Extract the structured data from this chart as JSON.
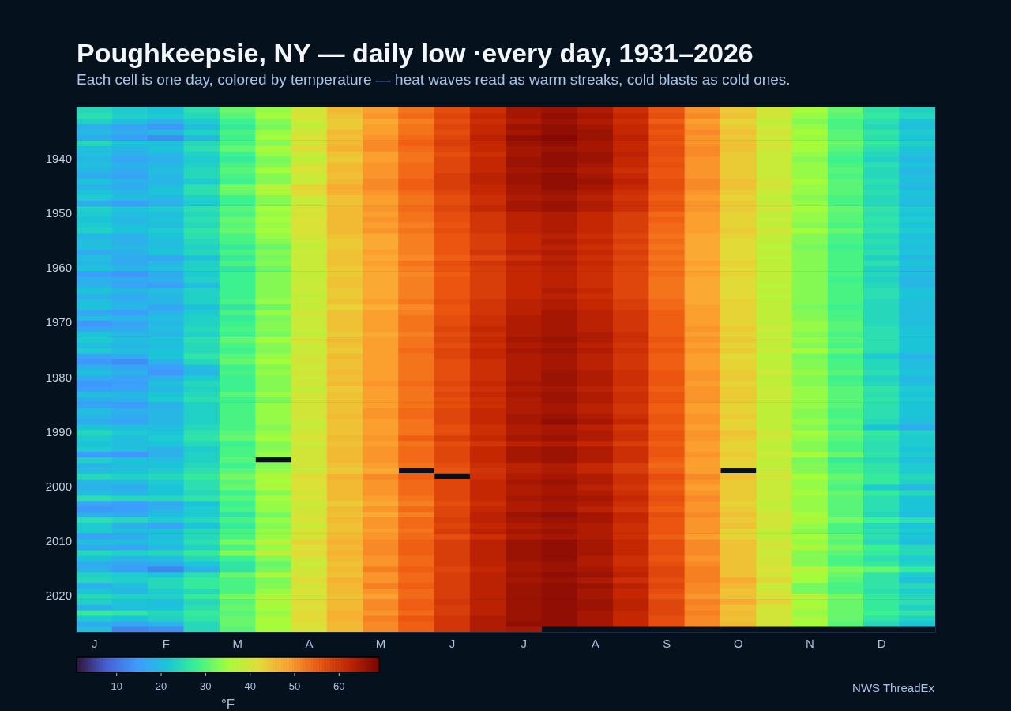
{
  "chart_data": {
    "type": "heatmap",
    "title": "Poughkeepsie, NY — daily low ·every day, 1931–2026",
    "subtitle": "Each cell is one day, colored by temperature — heat waves read as warm streaks, cold blasts as cold ones.",
    "categories": [
      "J",
      null,
      "F",
      null,
      "M",
      null,
      "A",
      null,
      "M",
      null,
      "J",
      null,
      "J",
      null,
      "A",
      null,
      "S",
      null,
      "O",
      null,
      "N",
      null,
      "D",
      null
    ],
    "y_categories": [
      null,
      null,
      null,
      null,
      null,
      null,
      null,
      null,
      null,
      "1940",
      null,
      null,
      null,
      null,
      null,
      null,
      null,
      null,
      null,
      "1950",
      null,
      null,
      null,
      null,
      null,
      null,
      null,
      null,
      null,
      "1960",
      null,
      null,
      null,
      null,
      null,
      null,
      null,
      null,
      null,
      "1970",
      null,
      null,
      null,
      null,
      null,
      null,
      null,
      null,
      null,
      "1980",
      null,
      null,
      null,
      null,
      null,
      null,
      null,
      null,
      null,
      "1990",
      null,
      null,
      null,
      null,
      null,
      null,
      null,
      null,
      null,
      "2000",
      null,
      null,
      null,
      null,
      null,
      null,
      null,
      null,
      null,
      "2010",
      null,
      null,
      null,
      null,
      null,
      null,
      null,
      null,
      null,
      "2020",
      null,
      null,
      null,
      null,
      null,
      null
    ],
    "cells": [
      [
        24,
        22,
        21,
        25,
        31,
        34,
        40,
        46,
        49,
        53,
        57,
        61,
        65,
        66,
        64,
        61,
        56,
        50,
        44,
        40,
        35,
        31,
        26,
        23
      ],
      [
        25,
        23,
        22,
        24,
        30,
        35,
        41,
        45,
        50,
        54,
        58,
        62,
        65,
        67,
        65,
        62,
        57,
        51,
        45,
        40,
        34,
        30,
        27,
        24
      ],
      [
        23,
        20,
        18,
        22,
        28,
        33,
        39,
        44,
        48,
        52,
        57,
        61,
        64,
        66,
        64,
        61,
        55,
        49,
        43,
        38,
        33,
        29,
        25,
        21
      ],
      [
        18,
        16,
        14,
        20,
        27,
        32,
        38,
        44,
        49,
        53,
        58,
        62,
        66,
        67,
        65,
        62,
        57,
        50,
        44,
        39,
        34,
        29,
        24,
        20
      ],
      [
        19,
        17,
        19,
        23,
        29,
        34,
        40,
        46,
        49,
        53,
        57,
        62,
        65,
        67,
        66,
        62,
        56,
        51,
        45,
        40,
        35,
        30,
        26,
        22
      ],
      [
        17,
        15,
        13,
        19,
        28,
        35,
        41,
        45,
        50,
        54,
        58,
        63,
        67,
        68,
        66,
        63,
        57,
        50,
        44,
        39,
        34,
        30,
        25,
        21
      ],
      [
        24,
        21,
        20,
        24,
        29,
        33,
        40,
        46,
        51,
        55,
        59,
        62,
        66,
        67,
        65,
        62,
        56,
        50,
        45,
        40,
        35,
        31,
        27,
        23
      ],
      [
        20,
        19,
        21,
        25,
        31,
        36,
        42,
        47,
        51,
        54,
        58,
        62,
        65,
        66,
        65,
        62,
        57,
        51,
        45,
        40,
        35,
        30,
        25,
        21
      ],
      [
        20,
        18,
        19,
        23,
        28,
        34,
        39,
        45,
        49,
        53,
        57,
        61,
        65,
        67,
        66,
        63,
        57,
        51,
        44,
        39,
        34,
        29,
        24,
        20
      ],
      [
        19,
        16,
        18,
        22,
        27,
        32,
        38,
        44,
        49,
        53,
        58,
        62,
        66,
        67,
        66,
        62,
        56,
        50,
        44,
        39,
        33,
        28,
        23,
        19
      ],
      [
        20,
        18,
        19,
        23,
        29,
        33,
        40,
        46,
        50,
        54,
        58,
        62,
        66,
        67,
        65,
        62,
        57,
        50,
        44,
        39,
        34,
        29,
        25,
        21
      ],
      [
        19,
        17,
        20,
        24,
        30,
        35,
        41,
        46,
        50,
        54,
        58,
        62,
        65,
        66,
        64,
        61,
        56,
        50,
        44,
        39,
        34,
        30,
        24,
        19
      ],
      [
        17,
        16,
        19,
        24,
        29,
        33,
        39,
        45,
        50,
        54,
        59,
        63,
        66,
        67,
        65,
        62,
        56,
        50,
        44,
        39,
        34,
        29,
        24,
        20
      ],
      [
        21,
        18,
        19,
        22,
        28,
        33,
        39,
        46,
        51,
        55,
        59,
        63,
        66,
        67,
        66,
        63,
        57,
        51,
        45,
        40,
        35,
        30,
        25,
        20
      ],
      [
        18,
        17,
        20,
        25,
        32,
        37,
        43,
        48,
        51,
        55,
        59,
        62,
        65,
        67,
        65,
        62,
        57,
        51,
        45,
        40,
        34,
        30,
        24,
        19
      ],
      [
        21,
        19,
        21,
        25,
        31,
        36,
        42,
        47,
        50,
        54,
        58,
        62,
        65,
        66,
        64,
        61,
        56,
        50,
        44,
        39,
        34,
        30,
        25,
        21
      ],
      [
        22,
        20,
        19,
        23,
        28,
        33,
        39,
        45,
        49,
        53,
        57,
        61,
        64,
        65,
        63,
        60,
        55,
        49,
        43,
        38,
        33,
        29,
        24,
        20
      ],
      [
        17,
        15,
        18,
        22,
        28,
        33,
        39,
        45,
        49,
        53,
        57,
        61,
        65,
        66,
        64,
        61,
        56,
        50,
        44,
        39,
        34,
        29,
        24,
        20
      ],
      [
        23,
        21,
        22,
        25,
        30,
        35,
        41,
        46,
        50,
        54,
        58,
        62,
        65,
        66,
        64,
        61,
        56,
        50,
        44,
        40,
        35,
        31,
        26,
        22
      ],
      [
        22,
        20,
        20,
        24,
        29,
        34,
        40,
        46,
        49,
        53,
        57,
        60,
        63,
        64,
        62,
        59,
        54,
        49,
        43,
        38,
        34,
        30,
        25,
        21
      ],
      [
        21,
        19,
        21,
        25,
        31,
        35,
        41,
        46,
        50,
        53,
        57,
        60,
        63,
        64,
        62,
        59,
        55,
        49,
        43,
        39,
        34,
        30,
        26,
        22
      ],
      [
        22,
        20,
        20,
        24,
        30,
        34,
        41,
        46,
        49,
        52,
        56,
        60,
        63,
        64,
        62,
        59,
        54,
        49,
        43,
        38,
        33,
        29,
        25,
        21
      ],
      [
        23,
        21,
        22,
        26,
        31,
        35,
        41,
        46,
        50,
        53,
        57,
        60,
        63,
        64,
        62,
        59,
        54,
        49,
        44,
        40,
        35,
        31,
        26,
        22
      ],
      [
        19,
        18,
        21,
        25,
        29,
        34,
        40,
        45,
        48,
        52,
        56,
        59,
        62,
        63,
        61,
        58,
        53,
        48,
        43,
        38,
        33,
        29,
        24,
        20
      ],
      [
        20,
        18,
        20,
        24,
        29,
        33,
        39,
        44,
        48,
        52,
        56,
        59,
        62,
        64,
        62,
        59,
        54,
        48,
        42,
        38,
        33,
        29,
        25,
        21
      ],
      [
        20,
        19,
        20,
        23,
        27,
        31,
        38,
        44,
        48,
        52,
        56,
        59,
        62,
        63,
        61,
        58,
        53,
        48,
        42,
        37,
        32,
        28,
        24,
        20
      ],
      [
        17,
        18,
        21,
        24,
        29,
        33,
        39,
        45,
        49,
        52,
        56,
        60,
        63,
        64,
        62,
        59,
        54,
        48,
        42,
        38,
        33,
        29,
        25,
        21
      ],
      [
        20,
        17,
        16,
        20,
        27,
        32,
        39,
        45,
        48,
        51,
        55,
        58,
        61,
        63,
        61,
        58,
        53,
        48,
        42,
        37,
        33,
        29,
        23,
        19
      ],
      [
        19,
        17,
        19,
        23,
        29,
        33,
        39,
        45,
        49,
        53,
        57,
        60,
        63,
        64,
        62,
        59,
        54,
        49,
        43,
        38,
        33,
        29,
        25,
        21
      ],
      [
        21,
        19,
        20,
        23,
        26,
        31,
        39,
        44,
        48,
        52,
        56,
        59,
        62,
        63,
        61,
        58,
        53,
        48,
        42,
        38,
        33,
        29,
        23,
        19
      ],
      [
        15,
        14,
        17,
        22,
        28,
        33,
        38,
        44,
        48,
        51,
        55,
        59,
        62,
        63,
        61,
        58,
        54,
        49,
        43,
        38,
        33,
        29,
        24,
        20
      ],
      [
        18,
        17,
        18,
        23,
        28,
        33,
        39,
        45,
        48,
        52,
        56,
        59,
        62,
        63,
        61,
        58,
        53,
        48,
        42,
        38,
        33,
        28,
        23,
        19
      ],
      [
        18,
        16,
        15,
        20,
        28,
        33,
        39,
        45,
        48,
        52,
        56,
        59,
        62,
        63,
        61,
        58,
        53,
        48,
        42,
        37,
        33,
        29,
        24,
        19
      ],
      [
        21,
        19,
        20,
        23,
        28,
        33,
        39,
        44,
        48,
        52,
        56,
        59,
        62,
        64,
        62,
        58,
        53,
        48,
        42,
        38,
        33,
        29,
        25,
        21
      ],
      [
        18,
        17,
        19,
        23,
        28,
        33,
        38,
        44,
        48,
        52,
        56,
        59,
        62,
        63,
        61,
        58,
        53,
        48,
        42,
        37,
        33,
        29,
        25,
        21
      ],
      [
        20,
        18,
        19,
        23,
        29,
        34,
        39,
        45,
        49,
        53,
        57,
        60,
        63,
        64,
        62,
        59,
        54,
        48,
        43,
        38,
        33,
        29,
        24,
        20
      ],
      [
        21,
        19,
        16,
        20,
        26,
        31,
        38,
        43,
        47,
        51,
        56,
        60,
        63,
        64,
        62,
        59,
        54,
        49,
        43,
        38,
        32,
        28,
        24,
        20
      ],
      [
        16,
        15,
        18,
        22,
        29,
        34,
        40,
        45,
        49,
        52,
        56,
        60,
        63,
        65,
        63,
        60,
        55,
        49,
        43,
        38,
        33,
        29,
        24,
        20
      ],
      [
        20,
        19,
        20,
        23,
        27,
        32,
        39,
        45,
        49,
        53,
        57,
        61,
        64,
        65,
        63,
        60,
        55,
        49,
        43,
        38,
        33,
        29,
        24,
        20
      ],
      [
        14,
        16,
        19,
        23,
        28,
        33,
        39,
        45,
        49,
        53,
        57,
        61,
        64,
        65,
        63,
        60,
        55,
        49,
        43,
        38,
        34,
        30,
        24,
        20
      ],
      [
        16,
        17,
        20,
        24,
        29,
        33,
        39,
        45,
        49,
        53,
        58,
        62,
        64,
        65,
        63,
        60,
        55,
        50,
        44,
        39,
        34,
        30,
        25,
        21
      ],
      [
        21,
        19,
        19,
        23,
        28,
        32,
        38,
        44,
        48,
        52,
        57,
        61,
        64,
        65,
        64,
        61,
        55,
        49,
        43,
        38,
        33,
        29,
        25,
        21
      ],
      [
        22,
        20,
        21,
        25,
        31,
        35,
        41,
        46,
        49,
        53,
        58,
        62,
        65,
        66,
        64,
        61,
        56,
        50,
        44,
        39,
        34,
        30,
        25,
        21
      ],
      [
        20,
        19,
        20,
        24,
        29,
        33,
        39,
        45,
        49,
        53,
        57,
        61,
        64,
        65,
        63,
        60,
        55,
        49,
        43,
        38,
        33,
        29,
        25,
        21
      ],
      [
        22,
        20,
        21,
        24,
        28,
        33,
        39,
        44,
        49,
        54,
        58,
        62,
        65,
        66,
        64,
        61,
        56,
        50,
        44,
        39,
        35,
        31,
        25,
        21
      ],
      [
        16,
        17,
        21,
        26,
        30,
        34,
        40,
        46,
        49,
        53,
        58,
        62,
        64,
        65,
        63,
        60,
        55,
        49,
        42,
        37,
        32,
        28,
        22,
        18
      ],
      [
        14,
        13,
        18,
        24,
        31,
        35,
        40,
        45,
        49,
        53,
        57,
        61,
        64,
        65,
        63,
        60,
        55,
        49,
        43,
        38,
        33,
        29,
        24,
        20
      ],
      [
        18,
        16,
        15,
        20,
        28,
        33,
        39,
        45,
        49,
        53,
        57,
        61,
        64,
        65,
        63,
        60,
        55,
        49,
        43,
        38,
        33,
        29,
        24,
        20
      ],
      [
        20,
        18,
        14,
        19,
        29,
        34,
        40,
        46,
        49,
        53,
        57,
        61,
        64,
        66,
        64,
        61,
        56,
        50,
        44,
        39,
        34,
        30,
        25,
        21
      ],
      [
        17,
        16,
        18,
        22,
        28,
        33,
        39,
        45,
        49,
        53,
        57,
        61,
        64,
        66,
        64,
        61,
        56,
        50,
        44,
        38,
        33,
        28,
        23,
        19
      ],
      [
        14,
        15,
        20,
        24,
        28,
        33,
        40,
        46,
        50,
        54,
        58,
        62,
        65,
        66,
        64,
        61,
        56,
        49,
        43,
        38,
        33,
        29,
        24,
        20
      ],
      [
        15,
        16,
        19,
        23,
        28,
        33,
        38,
        44,
        49,
        53,
        57,
        61,
        64,
        65,
        63,
        60,
        55,
        50,
        44,
        39,
        34,
        30,
        26,
        22
      ],
      [
        20,
        19,
        21,
        24,
        30,
        34,
        40,
        45,
        49,
        53,
        58,
        62,
        65,
        66,
        64,
        61,
        56,
        50,
        44,
        39,
        34,
        30,
        25,
        21
      ],
      [
        17,
        18,
        22,
        25,
        28,
        32,
        40,
        45,
        49,
        53,
        57,
        61,
        64,
        66,
        64,
        61,
        56,
        50,
        44,
        39,
        34,
        30,
        26,
        22
      ],
      [
        16,
        15,
        18,
        23,
        29,
        34,
        40,
        45,
        49,
        53,
        57,
        61,
        64,
        65,
        63,
        60,
        55,
        49,
        43,
        38,
        34,
        30,
        25,
        21
      ],
      [
        20,
        18,
        19,
        23,
        29,
        34,
        40,
        45,
        50,
        54,
        58,
        62,
        64,
        65,
        63,
        60,
        55,
        49,
        43,
        38,
        33,
        29,
        25,
        21
      ],
      [
        19,
        17,
        19,
        23,
        29,
        34,
        40,
        46,
        50,
        54,
        58,
        62,
        65,
        66,
        64,
        61,
        56,
        50,
        44,
        38,
        33,
        29,
        25,
        21
      ],
      [
        17,
        16,
        19,
        23,
        29,
        34,
        39,
        45,
        49,
        53,
        58,
        62,
        65,
        67,
        65,
        62,
        56,
        50,
        43,
        38,
        34,
        30,
        24,
        20
      ],
      [
        21,
        20,
        20,
        24,
        29,
        33,
        39,
        45,
        49,
        53,
        57,
        61,
        64,
        65,
        63,
        60,
        55,
        49,
        43,
        38,
        33,
        29,
        21,
        17
      ],
      [
        24,
        22,
        21,
        25,
        30,
        34,
        40,
        45,
        49,
        53,
        57,
        61,
        64,
        65,
        64,
        61,
        56,
        50,
        45,
        40,
        35,
        31,
        27,
        23
      ],
      [
        22,
        20,
        22,
        26,
        31,
        35,
        41,
        46,
        50,
        55,
        59,
        62,
        65,
        66,
        64,
        61,
        56,
        50,
        44,
        39,
        34,
        30,
        26,
        22
      ],
      [
        21,
        20,
        21,
        24,
        28,
        33,
        39,
        45,
        49,
        53,
        57,
        60,
        63,
        64,
        62,
        59,
        55,
        49,
        43,
        38,
        33,
        29,
        25,
        22
      ],
      [
        22,
        20,
        18,
        22,
        29,
        33,
        40,
        46,
        50,
        54,
        58,
        62,
        65,
        66,
        64,
        61,
        56,
        49,
        43,
        38,
        33,
        29,
        25,
        21
      ],
      [
        15,
        14,
        18,
        23,
        29,
        34,
        40,
        46,
        50,
        54,
        58,
        62,
        65,
        66,
        64,
        61,
        56,
        50,
        44,
        39,
        35,
        31,
        26,
        22
      ],
      [
        23,
        21,
        20,
        23,
        30,
        null,
        40,
        46,
        50,
        54,
        58,
        62,
        65,
        66,
        64,
        61,
        55,
        49,
        43,
        38,
        32,
        27,
        24,
        20
      ],
      [
        19,
        20,
        21,
        24,
        28,
        33,
        40,
        45,
        49,
        53,
        57,
        61,
        63,
        64,
        62,
        59,
        54,
        49,
        43,
        38,
        33,
        29,
        26,
        22
      ],
      [
        20,
        21,
        22,
        25,
        30,
        34,
        39,
        44,
        48,
        null,
        56,
        60,
        63,
        64,
        62,
        59,
        55,
        49,
        null,
        39,
        33,
        29,
        26,
        22
      ],
      [
        24,
        23,
        24,
        27,
        32,
        36,
        42,
        47,
        51,
        55,
        null,
        61,
        64,
        65,
        64,
        61,
        57,
        51,
        45,
        40,
        35,
        31,
        27,
        24
      ],
      [
        19,
        20,
        22,
        25,
        30,
        35,
        41,
        46,
        50,
        54,
        58,
        62,
        65,
        66,
        64,
        61,
        56,
        50,
        44,
        39,
        34,
        30,
        27,
        23
      ],
      [
        18,
        17,
        21,
        25,
        31,
        36,
        41,
        46,
        50,
        54,
        58,
        62,
        64,
        65,
        63,
        60,
        55,
        49,
        44,
        39,
        34,
        29,
        22,
        19
      ],
      [
        20,
        19,
        21,
        24,
        28,
        33,
        40,
        46,
        50,
        54,
        58,
        62,
        64,
        65,
        64,
        61,
        56,
        50,
        44,
        39,
        35,
        31,
        27,
        24
      ],
      [
        25,
        24,
        24,
        26,
        30,
        35,
        41,
        46,
        49,
        53,
        58,
        62,
        65,
        66,
        65,
        62,
        57,
        51,
        44,
        39,
        34,
        30,
        25,
        21
      ],
      [
        16,
        15,
        17,
        21,
        28,
        34,
        39,
        44,
        48,
        52,
        57,
        61,
        64,
        65,
        64,
        61,
        56,
        50,
        43,
        38,
        34,
        30,
        25,
        21
      ],
      [
        14,
        15,
        18,
        22,
        29,
        34,
        40,
        46,
        50,
        54,
        58,
        62,
        64,
        65,
        63,
        60,
        55,
        50,
        44,
        39,
        34,
        30,
        25,
        21
      ],
      [
        18,
        17,
        20,
        22,
        26,
        32,
        40,
        45,
        48,
        52,
        58,
        63,
        66,
        67,
        65,
        62,
        57,
        51,
        45,
        40,
        35,
        30,
        24,
        20
      ],
      [
        25,
        24,
        22,
        24,
        29,
        34,
        41,
        46,
        50,
        54,
        59,
        63,
        65,
        66,
        65,
        62,
        56,
        50,
        44,
        40,
        36,
        32,
        28,
        25
      ],
      [
        22,
        18,
        16,
        21,
        27,
        33,
        39,
        45,
        50,
        54,
        58,
        62,
        64,
        65,
        64,
        61,
        56,
        50,
        45,
        40,
        34,
        29,
        24,
        21
      ],
      [
        22,
        20,
        21,
        24,
        29,
        34,
        41,
        45,
        49,
        53,
        59,
        63,
        65,
        66,
        64,
        61,
        56,
        50,
        43,
        38,
        33,
        29,
        25,
        22
      ],
      [
        16,
        17,
        20,
        24,
        29,
        34,
        40,
        46,
        50,
        54,
        57,
        61,
        64,
        65,
        64,
        61,
        55,
        49,
        43,
        38,
        35,
        31,
        25,
        21
      ],
      [
        20,
        20,
        21,
        25,
        32,
        37,
        43,
        47,
        51,
        55,
        59,
        63,
        66,
        67,
        65,
        62,
        57,
        51,
        45,
        40,
        34,
        30,
        24,
        20
      ],
      [
        17,
        16,
        19,
        23,
        29,
        34,
        41,
        46,
        51,
        55,
        59,
        63,
        66,
        67,
        65,
        62,
        57,
        51,
        45,
        40,
        36,
        32,
        28,
        24
      ],
      [
        24,
        23,
        24,
        27,
        33,
        38,
        42,
        47,
        51,
        55,
        59,
        63,
        66,
        67,
        65,
        62,
        57,
        51,
        45,
        39,
        33,
        30,
        27,
        24
      ],
      [
        21,
        19,
        20,
        24,
        28,
        33,
        40,
        46,
        50,
        54,
        59,
        63,
        66,
        67,
        64,
        61,
        56,
        50,
        45,
        40,
        33,
        29,
        25,
        22
      ],
      [
        17,
        16,
        17,
        21,
        26,
        31,
        39,
        45,
        50,
        54,
        59,
        63,
        65,
        66,
        64,
        61,
        57,
        51,
        45,
        40,
        33,
        29,
        27,
        23
      ],
      [
        18,
        15,
        12,
        18,
        26,
        32,
        40,
        46,
        52,
        55,
        58,
        62,
        65,
        66,
        65,
        62,
        58,
        52,
        45,
        41,
        37,
        33,
        31,
        27
      ],
      [
        23,
        22,
        21,
        25,
        31,
        36,
        40,
        45,
        50,
        54,
        59,
        63,
        66,
        67,
        66,
        63,
        58,
        52,
        45,
        40,
        35,
        31,
        26,
        22
      ],
      [
        24,
        23,
        24,
        27,
        29,
        32,
        42,
        47,
        50,
        54,
        59,
        63,
        65,
        66,
        64,
        61,
        57,
        52,
        48,
        43,
        35,
        30,
        26,
        20
      ],
      [
        18,
        20,
        24,
        27,
        29,
        33,
        40,
        46,
        52,
        55,
        59,
        63,
        66,
        67,
        66,
        63,
        58,
        51,
        46,
        39,
        32,
        29,
        26,
        24
      ],
      [
        21,
        19,
        22,
        24,
        29,
        34,
        41,
        46,
        50,
        54,
        59,
        63,
        66,
        67,
        65,
        62,
        57,
        51,
        45,
        40,
        32,
        29,
        25,
        22
      ],
      [
        24,
        23,
        23,
        27,
        32,
        36,
        40,
        45,
        49,
        54,
        59,
        63,
        66,
        67,
        65,
        62,
        56,
        50,
        45,
        41,
        37,
        32,
        27,
        24
      ],
      [
        23,
        21,
        20,
        24,
        30,
        36,
        42,
        46,
        51,
        55,
        60,
        63,
        66,
        67,
        66,
        63,
        58,
        52,
        48,
        43,
        35,
        31,
        27,
        25
      ],
      [
        18,
        20,
        21,
        25,
        31,
        35,
        41,
        46,
        51,
        55,
        59,
        63,
        66,
        67,
        66,
        63,
        58,
        51,
        45,
        40,
        36,
        31,
        27,
        23
      ],
      [
        27,
        26,
        24,
        27,
        30,
        34,
        42,
        47,
        50,
        54,
        59,
        63,
        66,
        67,
        65,
        62,
        58,
        52,
        46,
        40,
        34,
        31,
        28,
        26
      ],
      [
        22,
        21,
        23,
        26,
        31,
        36,
        42,
        47,
        52,
        56,
        60,
        64,
        66,
        67,
        65,
        62,
        57,
        51,
        45,
        40,
        36,
        31,
        26,
        23
      ],
      [
        17,
        16,
        18,
        24,
        31,
        35,
        41,
        46,
        51,
        55,
        60,
        64,
        67,
        67,
        65,
        62,
        57,
        51,
        46,
        40,
        35,
        30,
        24,
        21
      ],
      [
        20,
        12,
        13,
        24,
        30,
        35,
        41,
        46,
        51,
        55,
        60,
        64,
        65,
        null,
        null,
        null,
        null,
        null,
        null,
        null,
        null,
        null,
        null,
        null
      ]
    ],
    "clim": [
      1,
      69
    ],
    "cticks": [
      10,
      20,
      30,
      40,
      50,
      60
    ],
    "clabel": "°F",
    "annotations": [
      "NWS ThreadEx"
    ]
  }
}
